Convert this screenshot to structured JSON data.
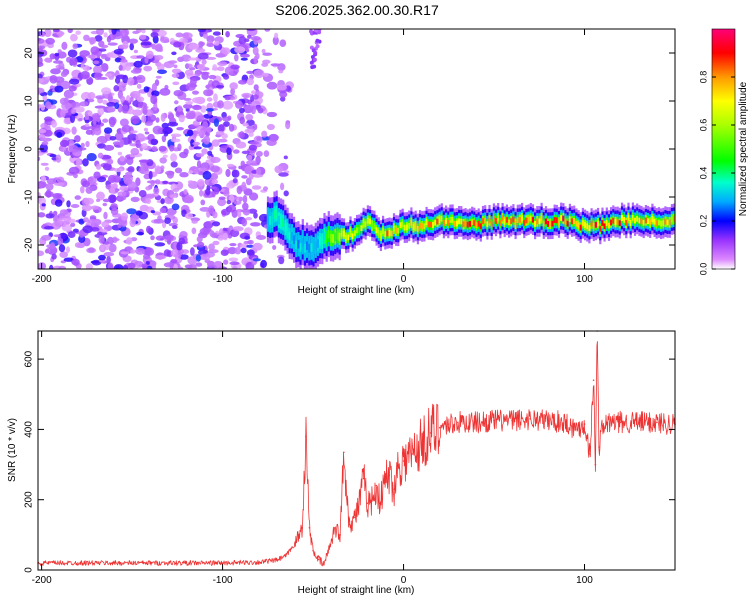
{
  "title": "S206.2025.362.00.30.R17",
  "chart_data": [
    {
      "type": "heatmap",
      "xlabel": "Height of straight line (km)",
      "ylabel": "Frequency (Hz)",
      "xlim": [
        -202,
        150
      ],
      "ylim": [
        -25,
        25
      ],
      "xticks": [
        -200,
        -100,
        0,
        100
      ],
      "yticks": [
        -20,
        -10,
        0,
        10,
        20
      ],
      "colorbar": {
        "label": "Normalized spectral amplitude",
        "range": [
          0,
          1
        ],
        "ticks": [
          "0.0",
          "0.2",
          "0.4",
          "0.6",
          "0.8"
        ],
        "colors": [
          "#ffffff",
          "#cc66ff",
          "#7700ff",
          "#0000ff",
          "#00ccff",
          "#00ff66",
          "#ffff00",
          "#ff8800",
          "#ff0000",
          "#ff0088"
        ]
      },
      "noise_region_km": [
        -202,
        -70
      ],
      "signal_track": {
        "x_km": [
          -75,
          -70,
          -65,
          -60,
          -55,
          -50,
          -45,
          -40,
          -35,
          -30,
          -25,
          -20,
          -15,
          -10,
          -5,
          0,
          10,
          20,
          30,
          40,
          50,
          60,
          70,
          80,
          90,
          100,
          110,
          120,
          130,
          140,
          150
        ],
        "freq_hz": [
          -15,
          -14,
          -16,
          -20,
          -20,
          -21,
          -19,
          -18,
          -18,
          -18,
          -17,
          -15,
          -17,
          -18,
          -17,
          -16,
          -16,
          -15,
          -15,
          -16,
          -15,
          -15,
          -15,
          -15,
          -15,
          -16,
          -16,
          -15,
          -15,
          -15,
          -15
        ],
        "peak_amplitude": [
          0.3,
          0.35,
          0.35,
          0.3,
          0.3,
          0.3,
          0.35,
          0.5,
          0.6,
          0.7,
          0.6,
          0.55,
          0.7,
          0.75,
          0.7,
          0.7,
          0.75,
          0.75,
          0.75,
          0.8,
          0.75,
          0.8,
          0.8,
          0.85,
          0.85,
          0.8,
          0.85,
          0.8,
          0.75,
          0.7,
          0.7
        ]
      }
    },
    {
      "type": "line",
      "xlabel": "Height of straight line (km)",
      "ylabel": "SNR (10 * v/v)",
      "xlim": [
        -202,
        150
      ],
      "ylim": [
        0,
        680
      ],
      "xticks": [
        -200,
        -100,
        0,
        100
      ],
      "yticks": [
        0,
        200,
        400,
        600
      ],
      "color": "#ee3333",
      "series": [
        {
          "name": "SNR",
          "x": [
            -202,
            -180,
            -160,
            -140,
            -120,
            -100,
            -80,
            -70,
            -65,
            -60,
            -56,
            -54,
            -52,
            -50,
            -47,
            -44,
            -41,
            -38,
            -35,
            -33,
            -30,
            -27,
            -25,
            -22,
            -20,
            -17,
            -15,
            -13,
            -10,
            -8,
            -5,
            -3,
            0,
            5,
            10,
            15,
            20,
            25,
            30,
            40,
            50,
            60,
            70,
            80,
            90,
            95,
            100,
            103,
            105,
            106,
            107,
            108,
            110,
            115,
            120,
            130,
            140,
            150
          ],
          "y": [
            20,
            20,
            20,
            20,
            20,
            20,
            22,
            28,
            40,
            75,
            120,
            380,
            120,
            55,
            30,
            15,
            65,
            120,
            100,
            335,
            130,
            150,
            180,
            260,
            190,
            200,
            240,
            190,
            260,
            270,
            230,
            300,
            310,
            330,
            360,
            390,
            405,
            415,
            420,
            420,
            425,
            425,
            430,
            425,
            420,
            400,
            415,
            330,
            540,
            300,
            680,
            350,
            410,
            420,
            420,
            420,
            420,
            415
          ]
        }
      ]
    }
  ]
}
